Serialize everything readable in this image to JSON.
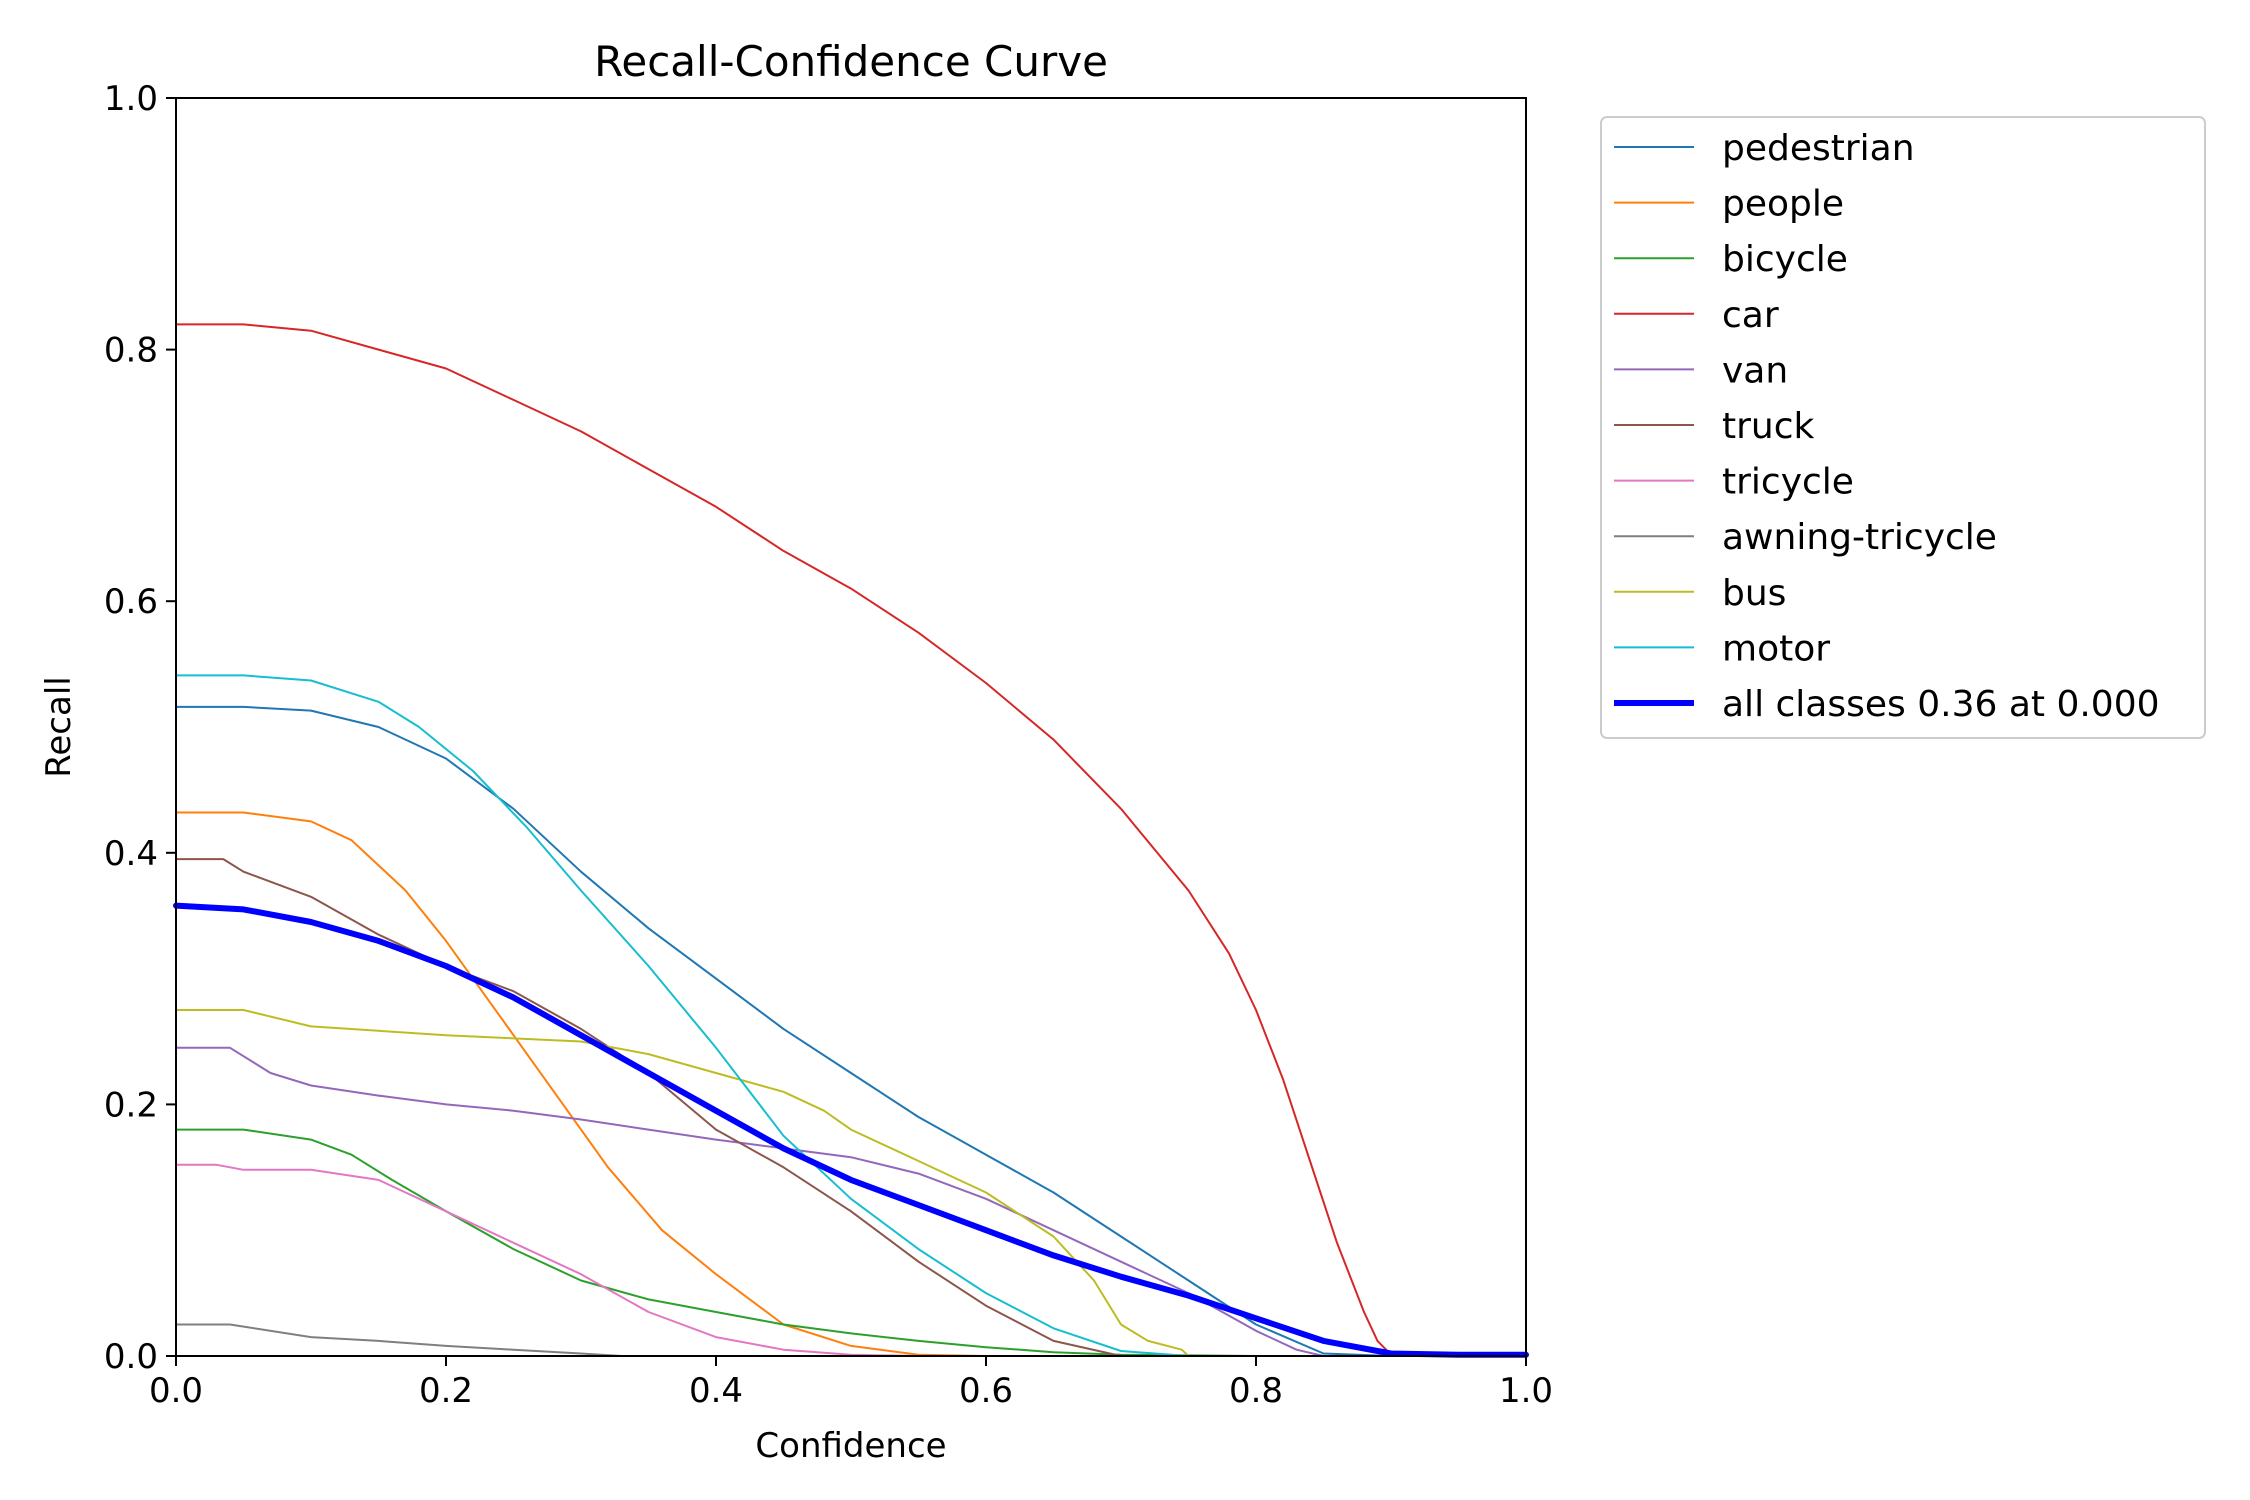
{
  "chart_data": {
    "type": "line",
    "title": "Recall-Confidence Curve",
    "xlabel": "Confidence",
    "ylabel": "Recall",
    "xlim": [
      0,
      1
    ],
    "ylim": [
      0,
      1
    ],
    "xticks": [
      "0.0",
      "0.2",
      "0.4",
      "0.6",
      "0.8",
      "1.0"
    ],
    "yticks": [
      "0.0",
      "0.2",
      "0.4",
      "0.6",
      "0.8",
      "1.0"
    ],
    "grid": false,
    "legend_position": "outside-right-top",
    "series": [
      {
        "name": "pedestrian",
        "color": "#1f77b4",
        "width": 1,
        "x": [
          0,
          0.05,
          0.1,
          0.15,
          0.2,
          0.25,
          0.3,
          0.35,
          0.4,
          0.45,
          0.5,
          0.55,
          0.6,
          0.65,
          0.7,
          0.75,
          0.8,
          0.85,
          0.9,
          1.0
        ],
        "y": [
          0.516,
          0.516,
          0.513,
          0.5,
          0.475,
          0.435,
          0.385,
          0.34,
          0.3,
          0.26,
          0.225,
          0.19,
          0.16,
          0.13,
          0.095,
          0.06,
          0.025,
          0.002,
          0,
          0
        ]
      },
      {
        "name": "people",
        "color": "#ff7f0e",
        "width": 1,
        "x": [
          0,
          0.05,
          0.1,
          0.13,
          0.17,
          0.2,
          0.24,
          0.28,
          0.32,
          0.36,
          0.4,
          0.45,
          0.5,
          0.55,
          0.6,
          1.0
        ],
        "y": [
          0.432,
          0.432,
          0.425,
          0.41,
          0.37,
          0.33,
          0.27,
          0.21,
          0.15,
          0.1,
          0.065,
          0.025,
          0.008,
          0.001,
          0,
          0
        ]
      },
      {
        "name": "bicycle",
        "color": "#2ca02c",
        "width": 1,
        "x": [
          0,
          0.05,
          0.1,
          0.13,
          0.16,
          0.2,
          0.25,
          0.3,
          0.35,
          0.4,
          0.45,
          0.5,
          0.55,
          0.6,
          0.65,
          0.7,
          0.8,
          1.0
        ],
        "y": [
          0.18,
          0.18,
          0.172,
          0.16,
          0.14,
          0.115,
          0.085,
          0.06,
          0.045,
          0.035,
          0.025,
          0.018,
          0.012,
          0.007,
          0.003,
          0.001,
          0,
          0
        ]
      },
      {
        "name": "car",
        "color": "#d62728",
        "width": 1,
        "x": [
          0,
          0.05,
          0.1,
          0.15,
          0.2,
          0.25,
          0.3,
          0.35,
          0.4,
          0.45,
          0.5,
          0.55,
          0.6,
          0.65,
          0.7,
          0.75,
          0.78,
          0.8,
          0.82,
          0.84,
          0.86,
          0.88,
          0.89,
          0.9,
          1.0
        ],
        "y": [
          0.82,
          0.82,
          0.815,
          0.8,
          0.785,
          0.76,
          0.735,
          0.705,
          0.675,
          0.64,
          0.61,
          0.575,
          0.535,
          0.49,
          0.435,
          0.37,
          0.32,
          0.275,
          0.22,
          0.155,
          0.09,
          0.035,
          0.012,
          0.001,
          0
        ]
      },
      {
        "name": "van",
        "color": "#9467bd",
        "width": 1,
        "x": [
          0,
          0.04,
          0.07,
          0.1,
          0.15,
          0.2,
          0.25,
          0.3,
          0.35,
          0.4,
          0.45,
          0.5,
          0.55,
          0.6,
          0.65,
          0.7,
          0.75,
          0.8,
          0.83,
          0.85,
          1.0
        ],
        "y": [
          0.245,
          0.245,
          0.225,
          0.215,
          0.207,
          0.2,
          0.195,
          0.188,
          0.18,
          0.172,
          0.165,
          0.158,
          0.145,
          0.125,
          0.1,
          0.075,
          0.05,
          0.02,
          0.005,
          0,
          0
        ]
      },
      {
        "name": "truck",
        "color": "#8c564b",
        "width": 1,
        "x": [
          0,
          0.035,
          0.05,
          0.1,
          0.15,
          0.2,
          0.25,
          0.3,
          0.35,
          0.4,
          0.45,
          0.5,
          0.55,
          0.6,
          0.65,
          0.7,
          1.0
        ],
        "y": [
          0.395,
          0.395,
          0.385,
          0.365,
          0.335,
          0.31,
          0.29,
          0.26,
          0.225,
          0.18,
          0.15,
          0.115,
          0.075,
          0.04,
          0.012,
          0,
          0
        ]
      },
      {
        "name": "tricycle",
        "color": "#e377c2",
        "width": 1,
        "x": [
          0,
          0.03,
          0.05,
          0.1,
          0.15,
          0.2,
          0.25,
          0.3,
          0.35,
          0.4,
          0.45,
          0.5,
          0.55,
          1.0
        ],
        "y": [
          0.152,
          0.152,
          0.148,
          0.148,
          0.14,
          0.115,
          0.09,
          0.065,
          0.035,
          0.015,
          0.005,
          0.001,
          0,
          0
        ]
      },
      {
        "name": "awning-tricycle",
        "color": "#7f7f7f",
        "width": 1,
        "x": [
          0,
          0.04,
          0.1,
          0.15,
          0.2,
          0.25,
          0.3,
          0.33,
          1.0
        ],
        "y": [
          0.025,
          0.025,
          0.015,
          0.012,
          0.008,
          0.005,
          0.002,
          0,
          0
        ]
      },
      {
        "name": "bus",
        "color": "#bcbd22",
        "width": 1,
        "x": [
          0,
          0.05,
          0.1,
          0.2,
          0.3,
          0.35,
          0.4,
          0.45,
          0.48,
          0.5,
          0.55,
          0.6,
          0.65,
          0.68,
          0.7,
          0.72,
          0.745,
          0.75,
          1.0
        ],
        "y": [
          0.275,
          0.275,
          0.262,
          0.255,
          0.25,
          0.24,
          0.225,
          0.21,
          0.195,
          0.18,
          0.155,
          0.13,
          0.095,
          0.06,
          0.025,
          0.012,
          0.005,
          0,
          0
        ]
      },
      {
        "name": "motor",
        "color": "#17becf",
        "width": 1,
        "x": [
          0,
          0.05,
          0.1,
          0.15,
          0.18,
          0.22,
          0.26,
          0.3,
          0.35,
          0.4,
          0.45,
          0.5,
          0.55,
          0.6,
          0.65,
          0.7,
          0.75,
          1.0
        ],
        "y": [
          0.541,
          0.541,
          0.537,
          0.52,
          0.5,
          0.465,
          0.42,
          0.37,
          0.31,
          0.245,
          0.175,
          0.125,
          0.085,
          0.05,
          0.022,
          0.004,
          0,
          0
        ]
      },
      {
        "name": "all classes 0.36 at 0.000",
        "color": "#0000ff",
        "width": 3,
        "x": [
          0,
          0.05,
          0.1,
          0.15,
          0.2,
          0.25,
          0.3,
          0.35,
          0.4,
          0.45,
          0.5,
          0.55,
          0.6,
          0.65,
          0.7,
          0.75,
          0.8,
          0.85,
          0.9,
          0.95,
          1.0
        ],
        "y": [
          0.358,
          0.355,
          0.345,
          0.33,
          0.31,
          0.285,
          0.255,
          0.225,
          0.195,
          0.165,
          0.14,
          0.12,
          0.1,
          0.08,
          0.063,
          0.048,
          0.03,
          0.012,
          0.002,
          0.001,
          0.001
        ]
      }
    ]
  }
}
